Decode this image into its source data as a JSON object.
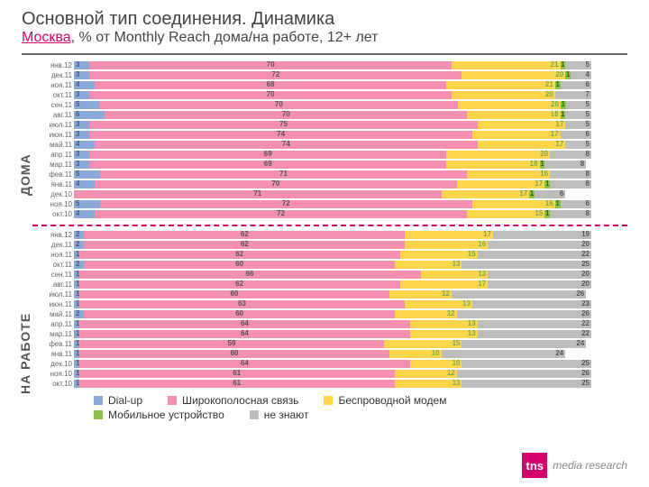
{
  "title": "Основной тип соединения. Динамика",
  "subtitle_loc": "Москва",
  "subtitle_rest": ", % от Monthly Reach дома/на работе, 12+ лет",
  "section1": "ДОМА",
  "section2": "НА РАБОТЕ",
  "colors": {
    "dialup": "#8aa8d8",
    "broadband": "#f48fb1",
    "wireless": "#ffd54a",
    "mobile": "#8bc34a",
    "dk": "#bdbdbd",
    "title": "#444444"
  },
  "scale": 100,
  "legend": [
    {
      "label": "Dial-up",
      "color": "#8aa8d8"
    },
    {
      "label": "Широкополосная связь",
      "color": "#f48fb1"
    },
    {
      "label": "Беспроводной модем",
      "color": "#ffd54a"
    },
    {
      "label": "Мобильное устройство",
      "color": "#8bc34a"
    },
    {
      "label": "не знают",
      "color": "#bdbdbd"
    }
  ],
  "home": {
    "labels": [
      "янв.12",
      "дек.11",
      "ноя.11",
      "окт.11",
      "сен.11",
      "авг.11",
      "июл.11",
      "июн.11",
      "май.11",
      "апр.11",
      "мар.11",
      "фев.11",
      "янв.11",
      "дек.10",
      "ноя.10",
      "окт.10"
    ],
    "rows": [
      {
        "d": 3,
        "b": 70,
        "w": 21,
        "m": 1,
        "k": 5
      },
      {
        "d": 3,
        "b": 72,
        "w": 20,
        "m": 1,
        "k": 4
      },
      {
        "d": 4,
        "b": 68,
        "w": 21,
        "m": 1,
        "k": 6
      },
      {
        "d": 3,
        "b": 70,
        "w": 20,
        "m": 0,
        "k": 7
      },
      {
        "d": 5,
        "b": 70,
        "w": 20,
        "m": 1,
        "k": 5
      },
      {
        "d": 6,
        "b": 70,
        "w": 18,
        "m": 1,
        "k": 5
      },
      {
        "d": 3,
        "b": 75,
        "w": 17,
        "m": 0,
        "k": 5
      },
      {
        "d": 3,
        "b": 74,
        "w": 17,
        "m": 0,
        "k": 6
      },
      {
        "d": 4,
        "b": 74,
        "w": 17,
        "m": 0,
        "k": 5
      },
      {
        "d": 3,
        "b": 69,
        "w": 20,
        "m": 0,
        "k": 8
      },
      {
        "d": 3,
        "b": 69,
        "w": 18,
        "m": 1,
        "k": 8
      },
      {
        "d": 5,
        "b": 71,
        "w": 16,
        "m": 0,
        "k": 8
      },
      {
        "d": 4,
        "b": 70,
        "w": 17,
        "m": 1,
        "k": 8
      },
      {
        "d": 0,
        "b": 71,
        "w": 17,
        "m": 1,
        "k": 6
      },
      {
        "d": 5,
        "b": 72,
        "w": 16,
        "m": 1,
        "k": 6
      },
      {
        "d": 4,
        "b": 72,
        "w": 15,
        "m": 1,
        "k": 8
      }
    ]
  },
  "work": {
    "labels": [
      "янв.12",
      "дек.11",
      "ноя.11",
      "окт.11",
      "сен.11",
      "авг.11",
      "июл.11",
      "июн.11",
      "май.11",
      "апр.11",
      "мар.11",
      "фев.11",
      "янв.11",
      "дек.10",
      "ноя.10",
      "окт.10"
    ],
    "rows": [
      {
        "d": 2,
        "b": 62,
        "w": 17,
        "m": 0,
        "k": 19
      },
      {
        "d": 2,
        "b": 62,
        "w": 16,
        "m": 0,
        "k": 20
      },
      {
        "d": 1,
        "b": 62,
        "w": 15,
        "m": 0,
        "k": 22
      },
      {
        "d": 2,
        "b": 60,
        "w": 13,
        "m": 0,
        "k": 25
      },
      {
        "d": 1,
        "b": 66,
        "w": 13,
        "m": 0,
        "k": 20
      },
      {
        "d": 1,
        "b": 62,
        "w": 17,
        "m": 0,
        "k": 20
      },
      {
        "d": 1,
        "b": 60,
        "w": 12,
        "m": 0,
        "k": 26
      },
      {
        "d": 1,
        "b": 63,
        "w": 13,
        "m": 0,
        "k": 23
      },
      {
        "d": 2,
        "b": 60,
        "w": 12,
        "m": 0,
        "k": 26
      },
      {
        "d": 1,
        "b": 64,
        "w": 13,
        "m": 0,
        "k": 22
      },
      {
        "d": 1,
        "b": 64,
        "w": 13,
        "m": 0,
        "k": 22
      },
      {
        "d": 1,
        "b": 59,
        "w": 15,
        "m": 0,
        "k": 24
      },
      {
        "d": 1,
        "b": 60,
        "w": 10,
        "m": 0,
        "k": 24
      },
      {
        "d": 1,
        "b": 64,
        "w": 10,
        "m": 0,
        "k": 25
      },
      {
        "d": 1,
        "b": 61,
        "w": 12,
        "m": 0,
        "k": 26
      },
      {
        "d": 1,
        "b": 61,
        "w": 13,
        "m": 0,
        "k": 25
      }
    ]
  },
  "logo": {
    "sq": "tns",
    "txt": "media research"
  }
}
